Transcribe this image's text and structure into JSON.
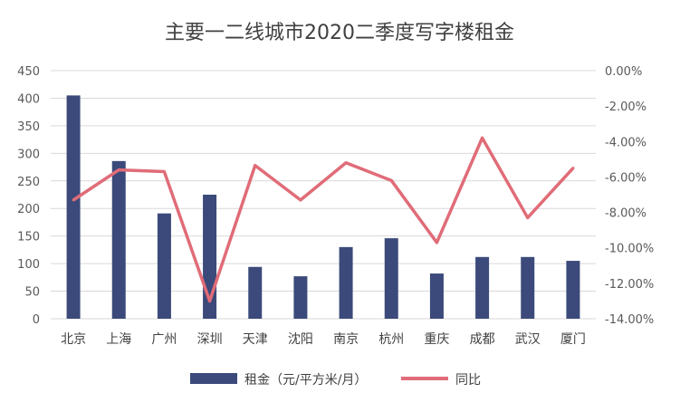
{
  "chart_data": {
    "type": "bar",
    "title": "主要一二线城市2020二季度写字楼租金",
    "categories": [
      "北京",
      "上海",
      "广州",
      "深圳",
      "天津",
      "沈阳",
      "南京",
      "杭州",
      "重庆",
      "成都",
      "武汉",
      "厦门"
    ],
    "series": [
      {
        "name": "租金（元/平方米/月）",
        "type": "bar",
        "axis": "left",
        "color": "#3b4a7a",
        "values": [
          405,
          286,
          191,
          225,
          94,
          77,
          130,
          146,
          82,
          112,
          112,
          105
        ]
      },
      {
        "name": "同比",
        "type": "line",
        "axis": "right",
        "color": "#e06c78",
        "values": [
          -7.3,
          -5.6,
          -5.7,
          -13.0,
          -5.35,
          -7.3,
          -5.2,
          -6.2,
          -9.7,
          -3.8,
          -8.3,
          -5.5
        ]
      }
    ],
    "y_left": {
      "min": 0,
      "max": 450,
      "ticks": [
        "0",
        "50",
        "100",
        "150",
        "200",
        "250",
        "300",
        "350",
        "400",
        "450"
      ]
    },
    "y_right": {
      "min": -14,
      "max": 0,
      "ticks": [
        "0.00%",
        "-2.00%",
        "-4.00%",
        "-6.00%",
        "-8.00%",
        "-10.00%",
        "-12.00%",
        "-14.00%"
      ]
    },
    "grid": true,
    "legend_position": "bottom"
  }
}
